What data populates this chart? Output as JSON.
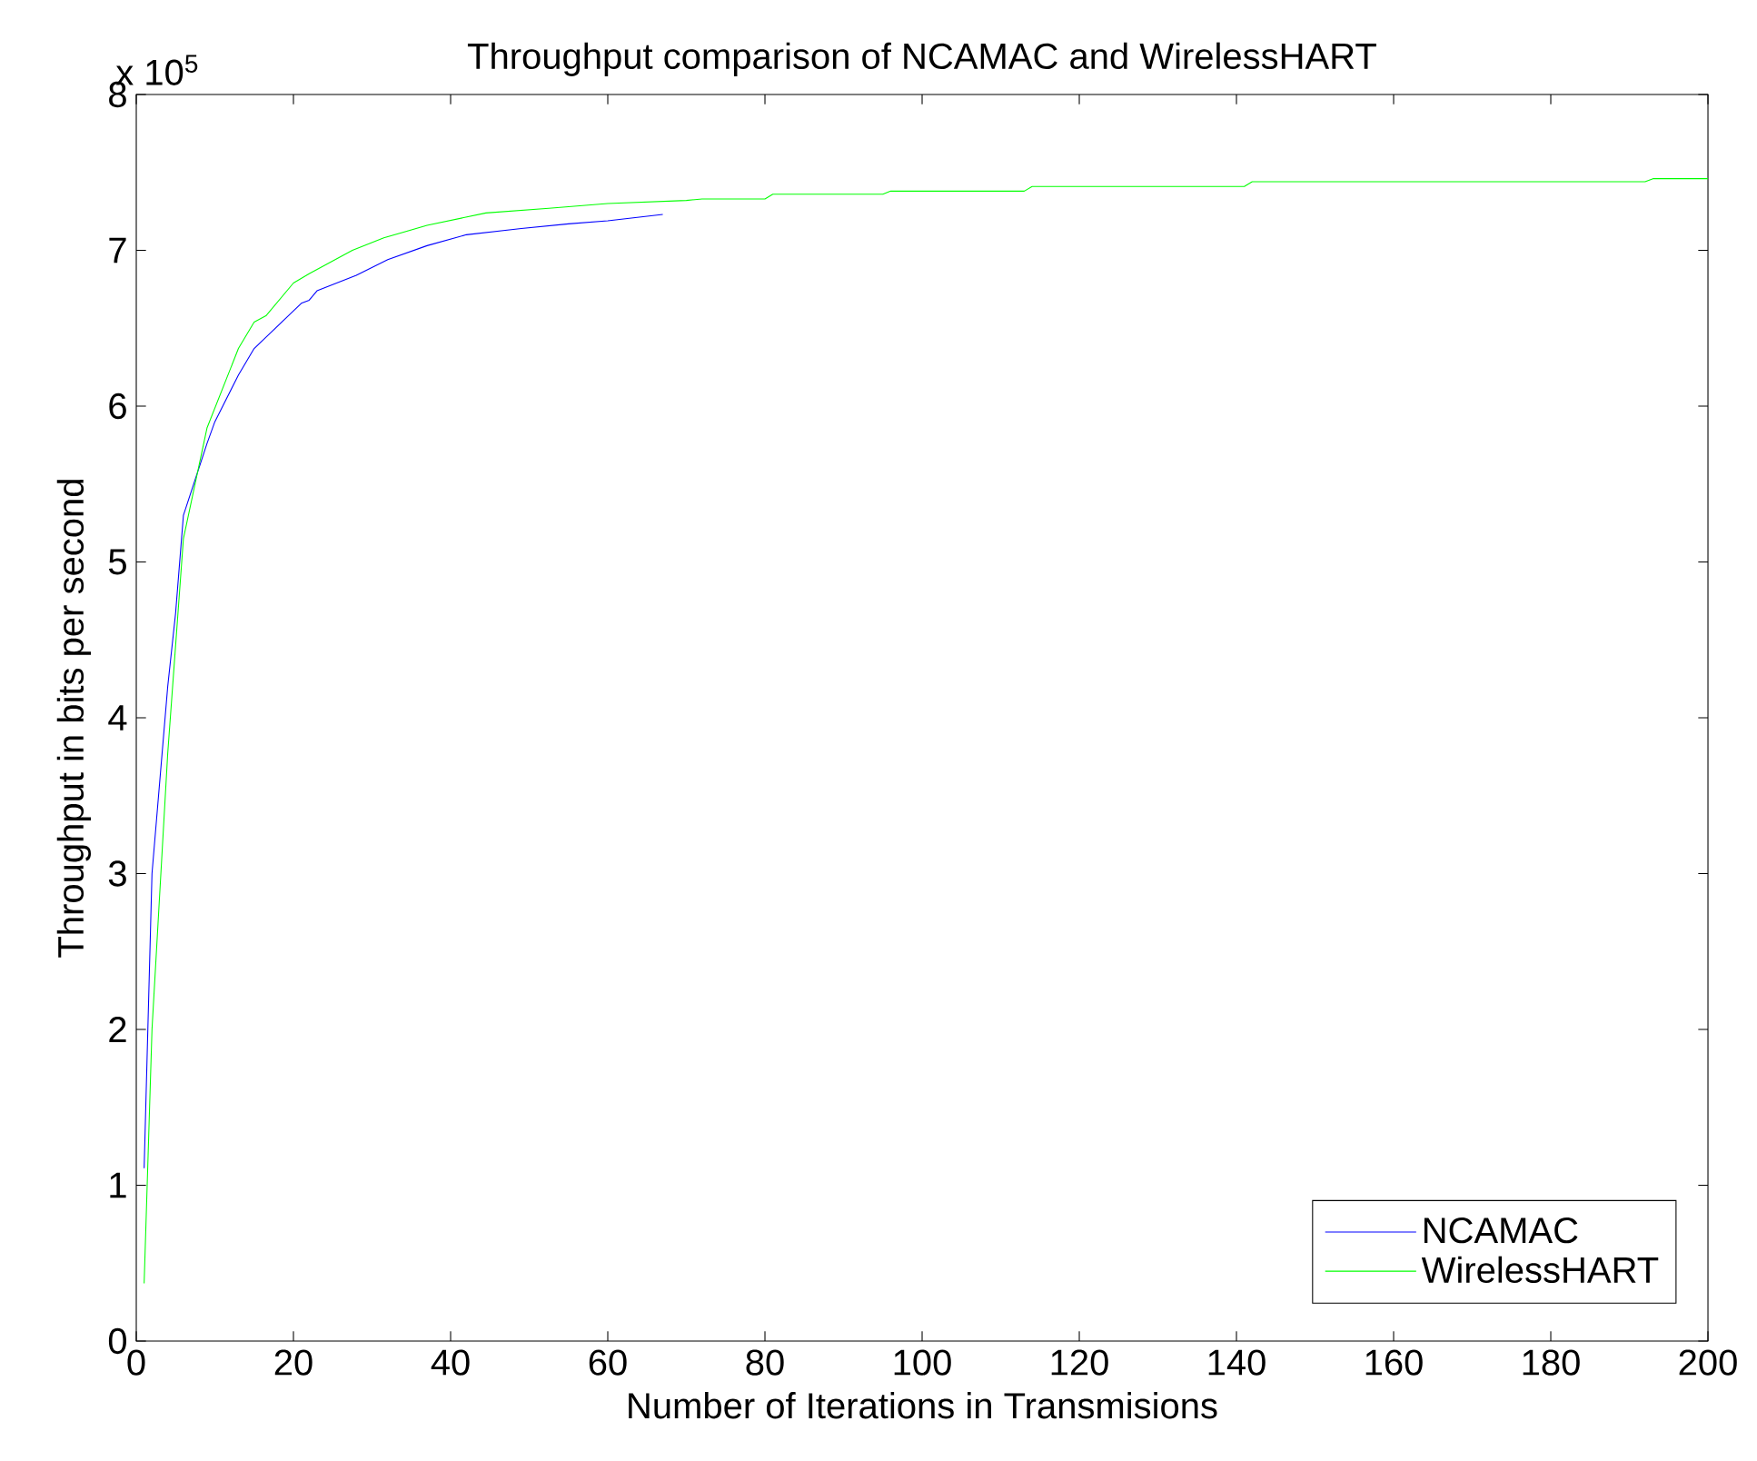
{
  "chart_data": {
    "type": "line",
    "title": "Throughput comparison of NCAMAC and WirelessHART",
    "xlabel": "Number of Iterations in Transmisions",
    "ylabel": "Throughput in bits per second",
    "annotations": [
      "x 10$^{5}$"
    ],
    "xlim": [
      0,
      200
    ],
    "ylim": [
      0,
      8
    ],
    "xticks": [
      0,
      20,
      40,
      60,
      80,
      100,
      120,
      140,
      160,
      180,
      200
    ],
    "yticks": [
      0,
      1,
      2,
      3,
      4,
      5,
      6,
      7,
      8
    ],
    "grid": false,
    "legend": "bottom right",
    "marker": "none",
    "line_style": "solid",
    "series": [
      {
        "name": "NCAMAC",
        "color": "#0000ff",
        "x": [
          1,
          2,
          4,
          5,
          6,
          9,
          10,
          13,
          15,
          21,
          22,
          23,
          28,
          32,
          37,
          42,
          49,
          55,
          60,
          67
        ],
        "values": [
          1.11,
          3.0,
          4.2,
          4.67,
          5.3,
          5.76,
          5.9,
          6.2,
          6.37,
          6.66,
          6.68,
          6.74,
          6.84,
          6.94,
          7.03,
          7.1,
          7.14,
          7.17,
          7.19,
          7.23
        ]
      },
      {
        "name": "WirelessHART",
        "color": "#00ff00",
        "x": [
          1,
          2,
          4,
          6,
          9,
          13,
          15,
          16.5,
          20,
          22,
          27.5,
          31.5,
          37,
          44.5,
          52.5,
          60,
          70,
          72,
          80,
          81,
          95,
          96,
          113,
          114,
          141,
          142,
          192,
          193,
          200
        ],
        "values": [
          0.37,
          2.0,
          3.77,
          5.15,
          5.86,
          6.37,
          6.54,
          6.58,
          6.79,
          6.85,
          7.0,
          7.08,
          7.16,
          7.24,
          7.27,
          7.3,
          7.32,
          7.33,
          7.33,
          7.36,
          7.36,
          7.38,
          7.38,
          7.41,
          7.41,
          7.44,
          7.44,
          7.46,
          7.46
        ]
      }
    ]
  }
}
